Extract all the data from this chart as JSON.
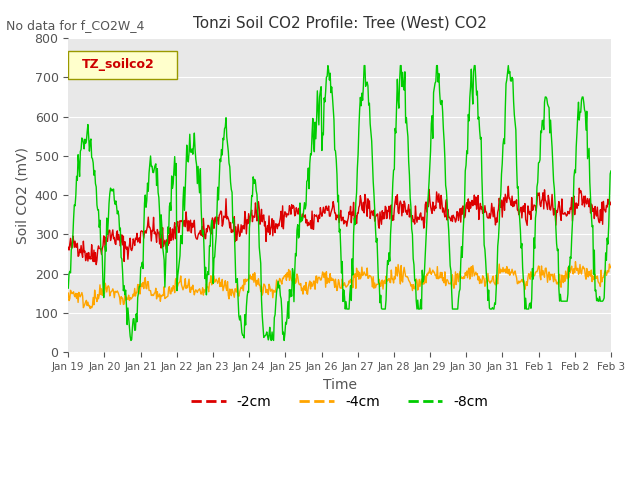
{
  "title": "Tonzi Soil CO2 Profile: Tree (West) CO2",
  "subtitle": "No data for f_CO2W_4",
  "xlabel": "Time",
  "ylabel": "Soil CO2 (mV)",
  "legend_label": "TZ_soilco2",
  "series_labels": [
    "-2cm",
    "-4cm",
    "-8cm"
  ],
  "series_colors": [
    "#dd0000",
    "#ffa500",
    "#00cc00"
  ],
  "ylim": [
    0,
    800
  ],
  "background_color": "#e8e8e8",
  "fig_color": "#ffffff",
  "xtick_labels": [
    "Jan 19",
    "Jan 20",
    "Jan 21",
    "Jan 22",
    "Jan 23",
    "Jan 24",
    "Jan 25",
    "Jan 26",
    "Jan 27",
    "Jan 28",
    "Jan 29",
    "Jan 30",
    "Jan 31",
    "Feb 1",
    "Feb 2",
    "Feb 3"
  ],
  "n_days": 15
}
